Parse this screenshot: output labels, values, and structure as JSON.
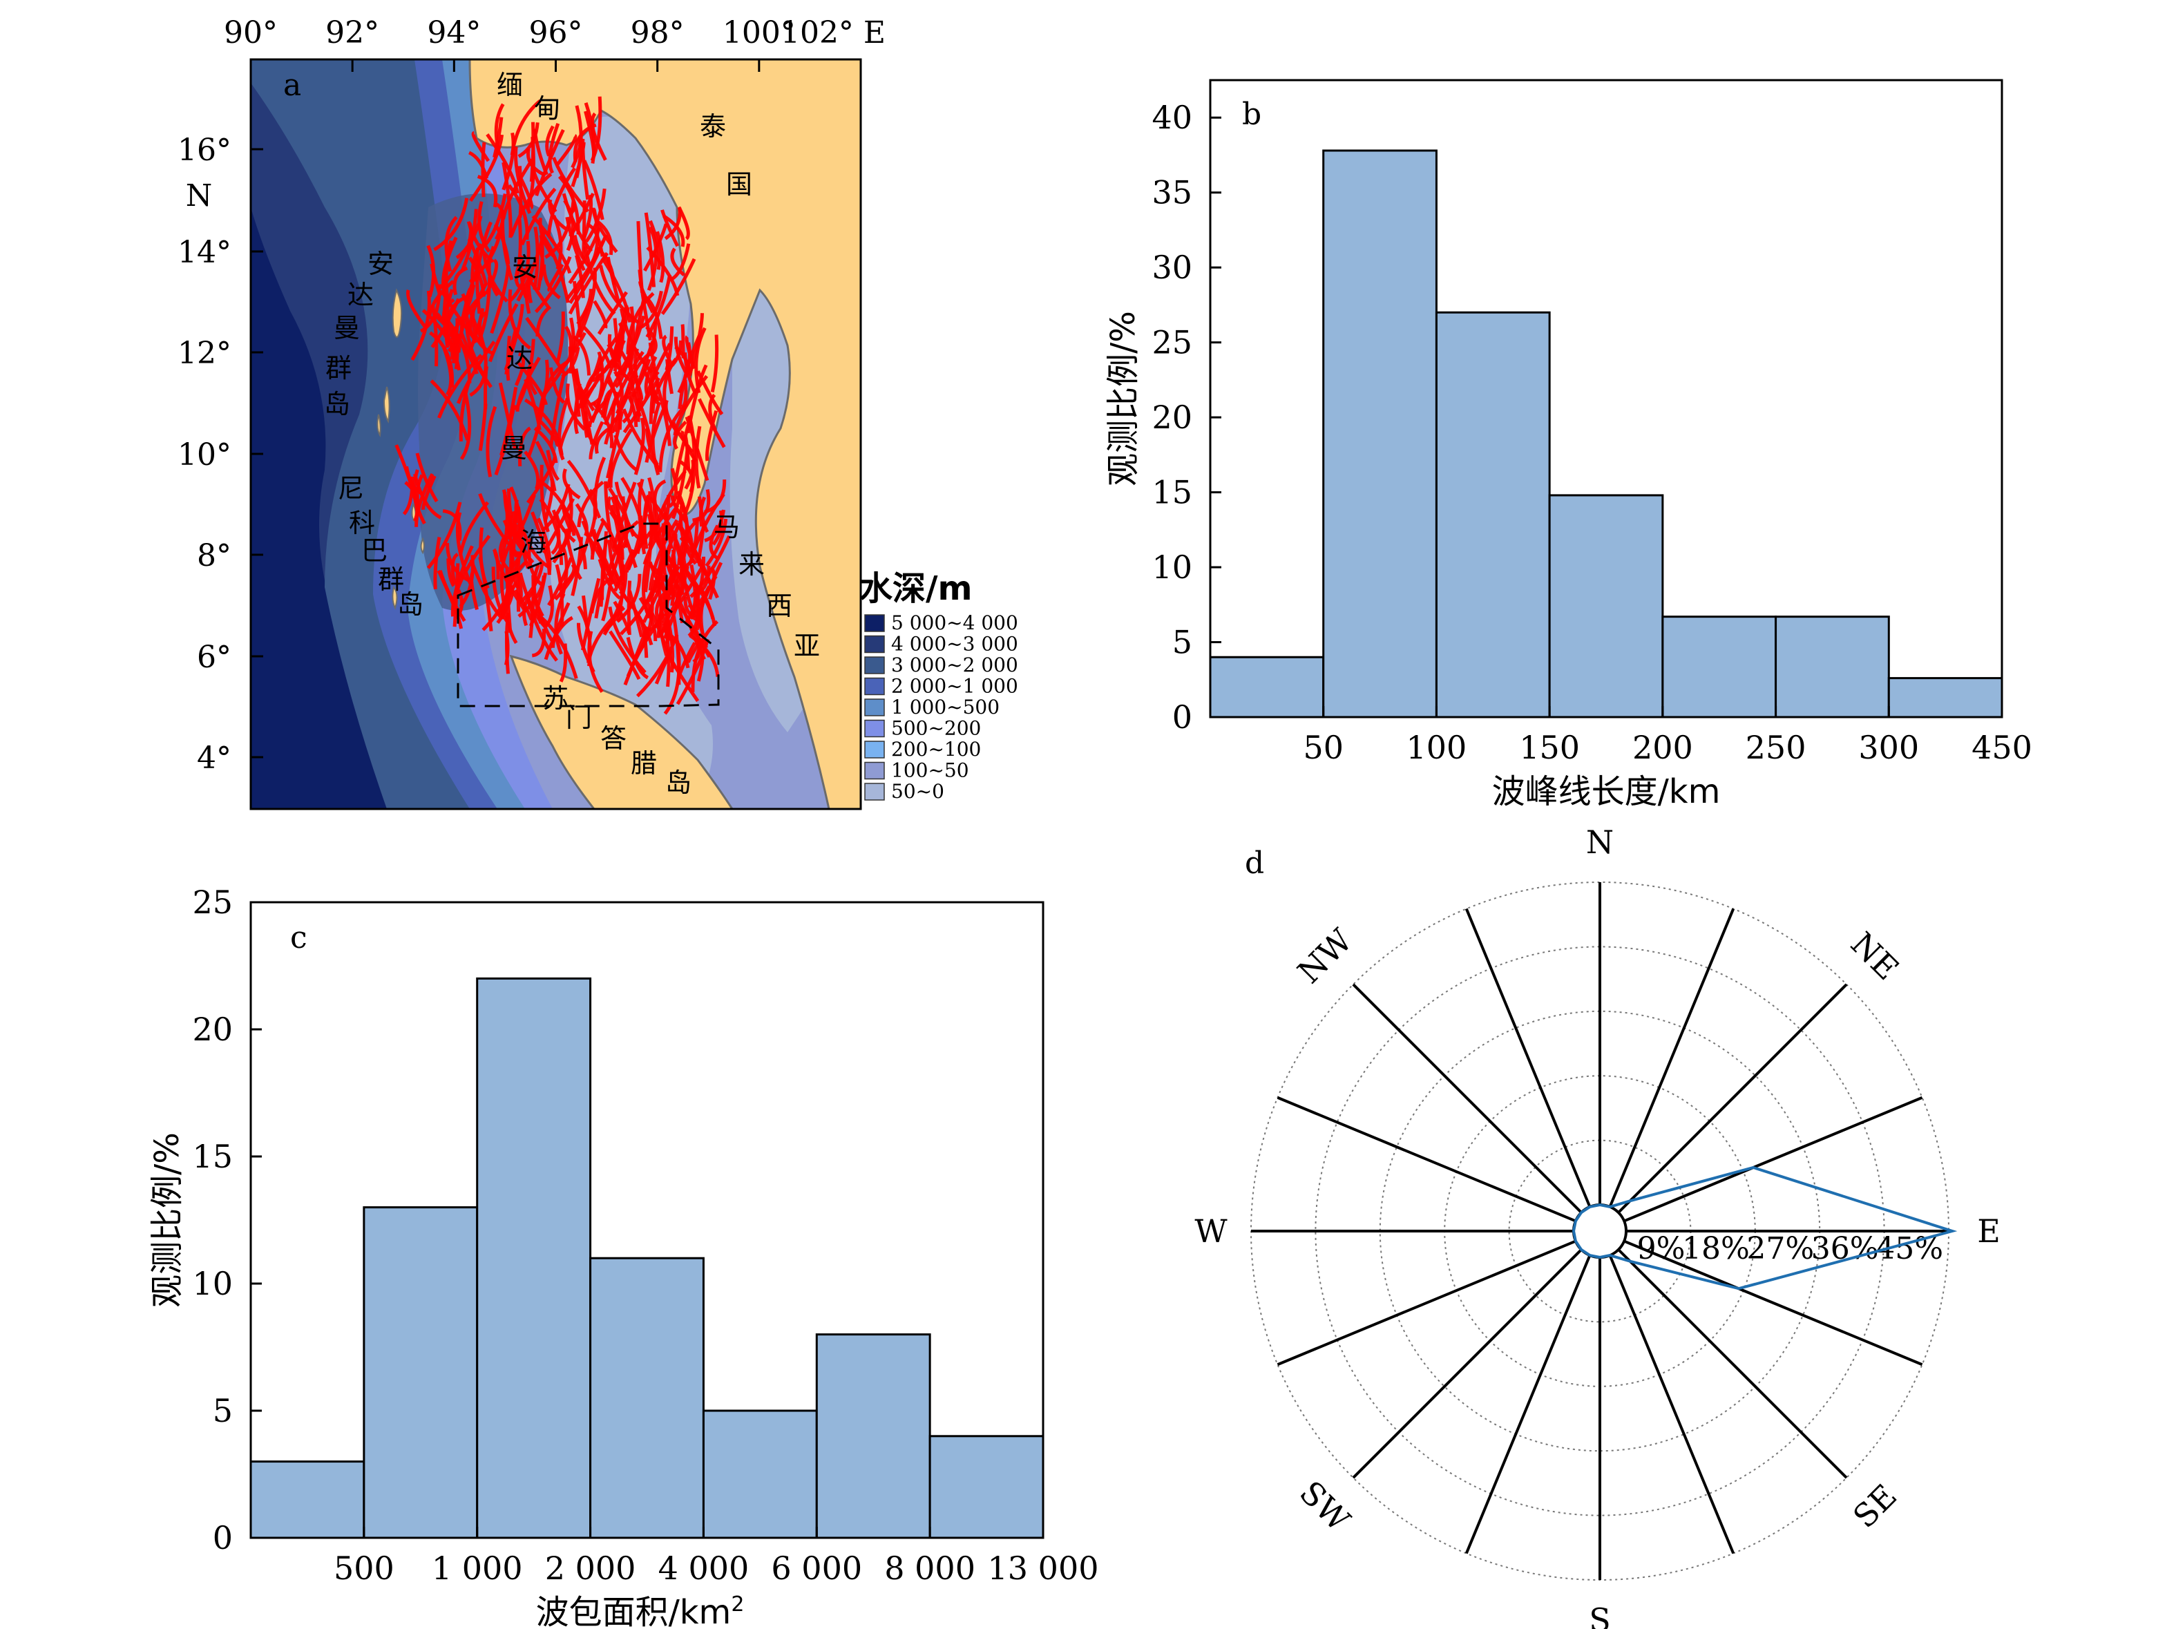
{
  "chart_data": [
    {
      "panel": "a",
      "type": "map",
      "lon_ticks": [
        "90°",
        "92°",
        "94°",
        "96°",
        "98°",
        "100°",
        "102° E"
      ],
      "lat_ticks": [
        "16°",
        "14°",
        "12°",
        "10°",
        "8°",
        "6°",
        "4°"
      ],
      "lat_hemisphere": "N",
      "place_labels": [
        {
          "text": "缅",
          "kind": "land"
        },
        {
          "text": "甸",
          "kind": "land"
        },
        {
          "text": "泰",
          "kind": "land"
        },
        {
          "text": "国",
          "kind": "land"
        },
        {
          "text": "安",
          "kind": "islands"
        },
        {
          "text": "达",
          "kind": "islands"
        },
        {
          "text": "曼",
          "kind": "islands"
        },
        {
          "text": "群",
          "kind": "islands"
        },
        {
          "text": "岛",
          "kind": "islands"
        },
        {
          "text": "安",
          "kind": "sea"
        },
        {
          "text": "达",
          "kind": "sea"
        },
        {
          "text": "曼",
          "kind": "sea"
        },
        {
          "text": "海",
          "kind": "sea"
        },
        {
          "text": "尼",
          "kind": "islands"
        },
        {
          "text": "科",
          "kind": "islands"
        },
        {
          "text": "巴",
          "kind": "islands"
        },
        {
          "text": "群",
          "kind": "islands"
        },
        {
          "text": "岛",
          "kind": "islands"
        },
        {
          "text": "马",
          "kind": "land"
        },
        {
          "text": "来",
          "kind": "land"
        },
        {
          "text": "西",
          "kind": "land"
        },
        {
          "text": "亚",
          "kind": "land"
        },
        {
          "text": "苏",
          "kind": "land"
        },
        {
          "text": "门",
          "kind": "land"
        },
        {
          "text": "答",
          "kind": "land"
        },
        {
          "text": "腊",
          "kind": "land"
        },
        {
          "text": "岛",
          "kind": "land"
        }
      ],
      "legend_title": "水深/m",
      "legend": [
        {
          "label": "5 000~4 000",
          "color": "#0d1f66"
        },
        {
          "label": "4 000~3 000",
          "color": "#263a78"
        },
        {
          "label": "3 000~2 000",
          "color": "#3a5a8e"
        },
        {
          "label": "2 000~1 000",
          "color": "#4a63b8"
        },
        {
          "label": "1 000~500",
          "color": "#5e8ec9"
        },
        {
          "label": "500~200",
          "color": "#7e8fe6"
        },
        {
          "label": "200~100",
          "color": "#79b2f0"
        },
        {
          "label": "100~50",
          "color": "#8f9bd3"
        },
        {
          "label": "50~0",
          "color": "#a6b6d9"
        }
      ],
      "land_color": "#fdd285",
      "wave_color": "#ff0000"
    },
    {
      "panel": "b",
      "type": "bar",
      "categories": [
        "0~50",
        "50~100",
        "100~150",
        "150~200",
        "200~250",
        "250~300",
        "300~450"
      ],
      "tick_labels": [
        "50",
        "100",
        "150",
        "200",
        "250",
        "300",
        "450"
      ],
      "values": [
        4,
        37.8,
        27,
        14.8,
        6.7,
        6.7,
        2.6
      ],
      "xlabel": "波峰线长度/km",
      "ylabel": "观测比例/%",
      "ylim": [
        0,
        42.5
      ],
      "yticks": [
        "0",
        "5",
        "10",
        "15",
        "20",
        "25",
        "30",
        "35",
        "40"
      ],
      "bar_color": "#94b6da"
    },
    {
      "panel": "c",
      "type": "bar",
      "categories": [
        "0~500",
        "500~1 000",
        "1 000~2 000",
        "2 000~4 000",
        "4 000~6 000",
        "6 000~8 000",
        "8 000~13 000"
      ],
      "tick_labels": [
        "500",
        "1 000",
        "2 000",
        "4 000",
        "6 000",
        "8 000",
        "13 000"
      ],
      "values": [
        3,
        13,
        22,
        11,
        5,
        8,
        4
      ],
      "xlabel_main": "波包面积/km",
      "xlabel_sup": "2",
      "ylabel": "观测比例/%",
      "ylim": [
        0,
        25
      ],
      "yticks": [
        "0",
        "5",
        "10",
        "15",
        "20",
        "25"
      ],
      "bar_color": "#94b6da"
    },
    {
      "panel": "d",
      "type": "rose",
      "directions": [
        "N",
        "NE",
        "E",
        "SE",
        "S",
        "SW",
        "W",
        "NW"
      ],
      "ring_labels": [
        "9%",
        "18%",
        "27%",
        "36%",
        "45%"
      ],
      "rmax": 45,
      "series": {
        "bearings": [
          0,
          22.5,
          45,
          67.5,
          90,
          112.5,
          135,
          157.5,
          180,
          202.5,
          225,
          247.5,
          270,
          292.5,
          315,
          337.5
        ],
        "values": [
          0,
          0,
          2.3,
          19.5,
          45.5,
          17.3,
          2.3,
          0,
          0,
          0,
          0,
          0,
          0,
          0,
          0,
          0
        ]
      },
      "line_color": "#1f6fb0"
    }
  ]
}
